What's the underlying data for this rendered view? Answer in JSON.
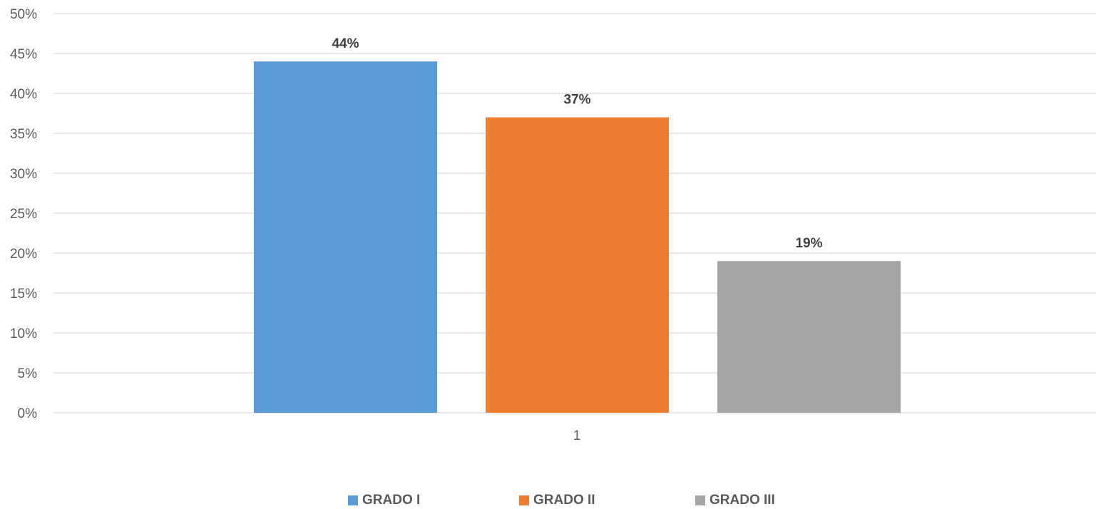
{
  "chart_data": {
    "type": "bar",
    "categories": [
      "1"
    ],
    "series": [
      {
        "name": "GRADO I",
        "values": [
          44
        ],
        "label": "44%",
        "color": "#5b9bd5"
      },
      {
        "name": "GRADO II",
        "values": [
          37
        ],
        "label": "37%",
        "color": "#ed7d31"
      },
      {
        "name": "GRADO III",
        "values": [
          19
        ],
        "label": "19%",
        "color": "#a5a5a5"
      }
    ],
    "ylim": [
      0,
      50
    ],
    "y_ticks": [
      "0%",
      "5%",
      "10%",
      "15%",
      "20%",
      "25%",
      "30%",
      "35%",
      "40%",
      "45%",
      "50%"
    ],
    "grid": true,
    "legend_position": "bottom",
    "colors": {
      "grid": "#d9d9d9",
      "text": "#595959",
      "label": "#404040"
    }
  }
}
